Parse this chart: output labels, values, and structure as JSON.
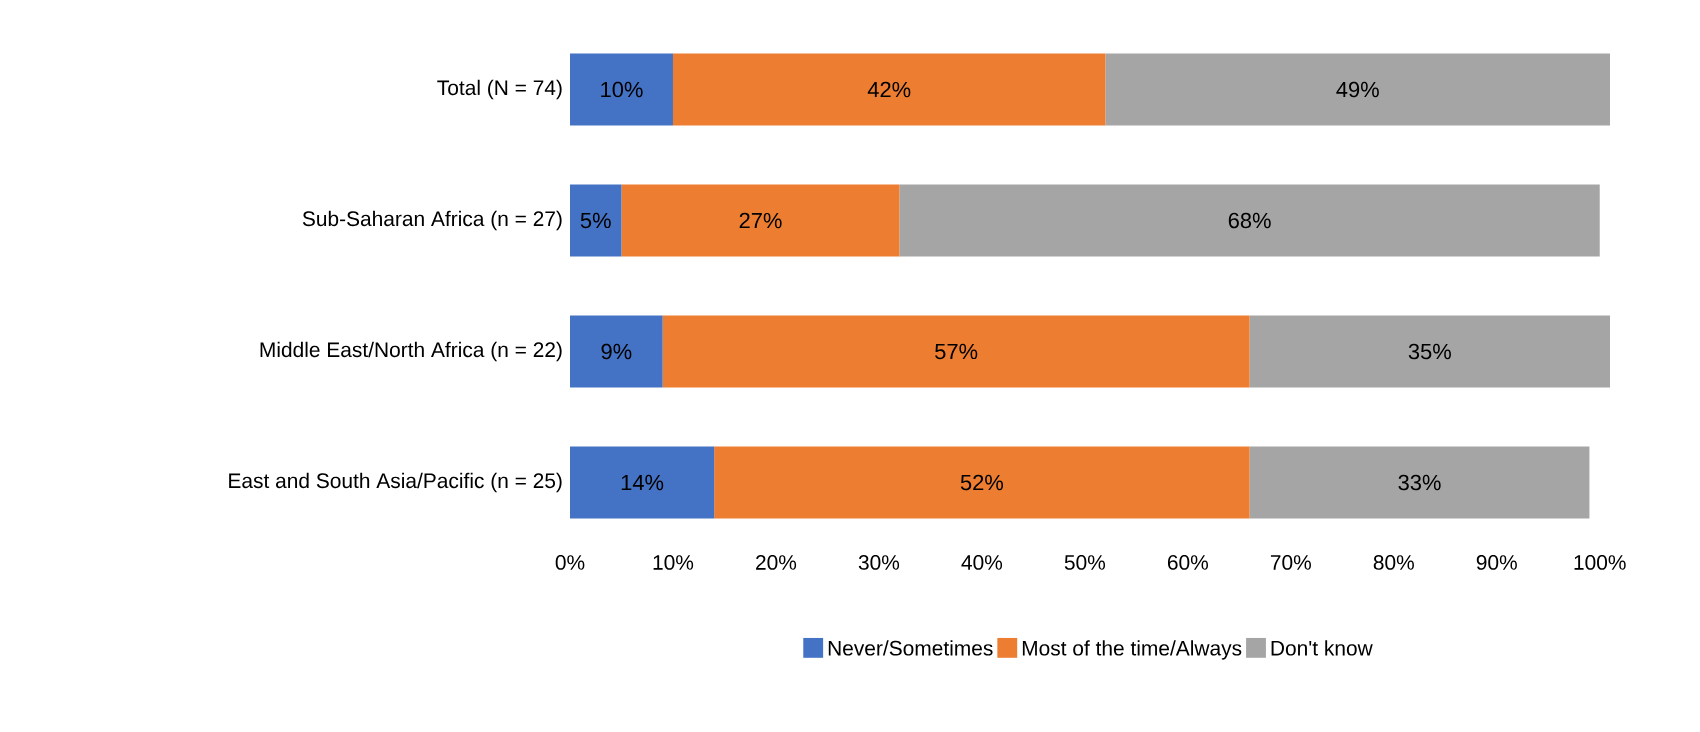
{
  "chart_data": {
    "type": "bar",
    "orientation": "horizontal",
    "stacked": true,
    "categories": [
      "Total (N = 74)",
      "Sub-Saharan Africa (n = 27)",
      "Middle East/North Africa (n = 22)",
      "East and South Asia/Pacific (n = 25)"
    ],
    "series": [
      {
        "name": "Never/Sometimes",
        "color": "#4472c4",
        "values": [
          10,
          5,
          9,
          14
        ],
        "value_labels": [
          "10%",
          "5%",
          "9%",
          "14%"
        ]
      },
      {
        "name": "Most of the time/Always",
        "color": "#ed7d31",
        "values": [
          42,
          27,
          57,
          52
        ],
        "value_labels": [
          "42%",
          "27%",
          "57%",
          "52%"
        ]
      },
      {
        "name": "Don't know",
        "color": "#a5a5a5",
        "values": [
          49,
          68,
          35,
          33
        ],
        "value_labels": [
          "49%",
          "68%",
          "35%",
          "33%"
        ]
      }
    ],
    "xlim": [
      0,
      101
    ],
    "xticks": [
      {
        "value": 0,
        "label": "0%"
      },
      {
        "value": 10,
        "label": "10%"
      },
      {
        "value": 20,
        "label": "20%"
      },
      {
        "value": 30,
        "label": "30%"
      },
      {
        "value": 40,
        "label": "40%"
      },
      {
        "value": 50,
        "label": "50%"
      },
      {
        "value": 60,
        "label": "60%"
      },
      {
        "value": 70,
        "label": "70%"
      },
      {
        "value": 80,
        "label": "80%"
      },
      {
        "value": 90,
        "label": "90%"
      },
      {
        "value": 100,
        "label": "100%"
      }
    ],
    "legend": "bottom",
    "grid": false
  }
}
